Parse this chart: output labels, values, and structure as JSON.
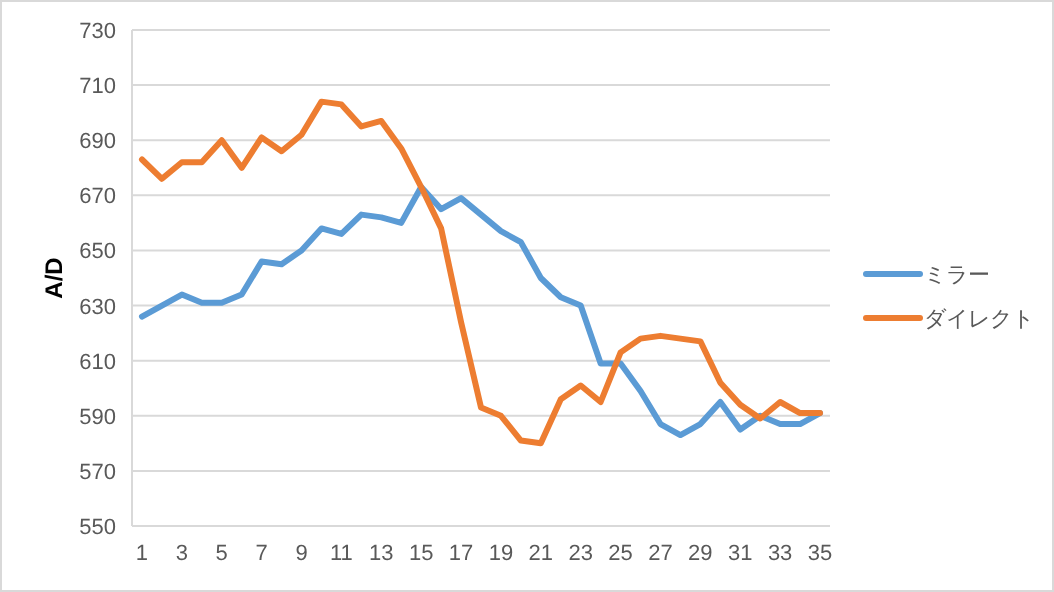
{
  "chart_data": {
    "type": "line",
    "ylabel": "A/D",
    "x": [
      1,
      2,
      3,
      4,
      5,
      6,
      7,
      8,
      9,
      10,
      11,
      12,
      13,
      14,
      15,
      16,
      17,
      18,
      19,
      20,
      21,
      22,
      23,
      24,
      25,
      26,
      27,
      28,
      29,
      30,
      31,
      32,
      33,
      34,
      35
    ],
    "xlim": [
      0.5,
      35.5
    ],
    "xticks": [
      1,
      3,
      5,
      7,
      9,
      11,
      13,
      15,
      17,
      19,
      21,
      23,
      25,
      27,
      29,
      31,
      33,
      35
    ],
    "series": [
      {
        "name": "ミラー",
        "color": "#5b9bd5",
        "values": [
          626,
          630,
          634,
          631,
          631,
          634,
          646,
          645,
          650,
          658,
          656,
          663,
          662,
          660,
          673,
          665,
          669,
          663,
          657,
          653,
          640,
          633,
          630,
          609,
          609,
          599,
          587,
          583,
          587,
          595,
          585,
          590,
          587,
          587,
          591
        ]
      },
      {
        "name": "ダイレクト",
        "color": "#ed7d31",
        "values": [
          683,
          676,
          682,
          682,
          690,
          680,
          691,
          686,
          692,
          704,
          703,
          695,
          697,
          687,
          673,
          658,
          624,
          593,
          590,
          581,
          580,
          596,
          601,
          595,
          613,
          618,
          619,
          618,
          617,
          602,
          594,
          589,
          595,
          591,
          591
        ]
      }
    ],
    "ylim": [
      550,
      730
    ],
    "yticks": [
      550,
      570,
      590,
      610,
      630,
      650,
      670,
      690,
      710,
      730
    ],
    "grid": "y",
    "legend": "right",
    "marker": "none",
    "line_style": "solid"
  }
}
